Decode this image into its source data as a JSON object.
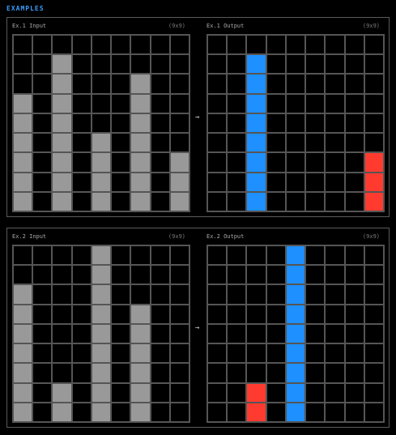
{
  "header": {
    "title": "EXAMPLES"
  },
  "arrow_glyph": "→",
  "palette": {
    "0": "#000000",
    "5": "#999999",
    "1": "#1e90ff",
    "2": "#ff3b30"
  },
  "examples": [
    {
      "input": {
        "label": "Ex.1 Input",
        "size": "(9x9)",
        "grid": [
          [
            0,
            0,
            0,
            0,
            0,
            0,
            0,
            0,
            0
          ],
          [
            0,
            0,
            5,
            0,
            0,
            0,
            0,
            0,
            0
          ],
          [
            0,
            0,
            5,
            0,
            0,
            0,
            5,
            0,
            0
          ],
          [
            5,
            0,
            5,
            0,
            0,
            0,
            5,
            0,
            0
          ],
          [
            5,
            0,
            5,
            0,
            0,
            0,
            5,
            0,
            0
          ],
          [
            5,
            0,
            5,
            0,
            5,
            0,
            5,
            0,
            0
          ],
          [
            5,
            0,
            5,
            0,
            5,
            0,
            5,
            0,
            5
          ],
          [
            5,
            0,
            5,
            0,
            5,
            0,
            5,
            0,
            5
          ],
          [
            5,
            0,
            5,
            0,
            5,
            0,
            5,
            0,
            5
          ]
        ]
      },
      "output": {
        "label": "Ex.1 Output",
        "size": "(9x9)",
        "grid": [
          [
            0,
            0,
            0,
            0,
            0,
            0,
            0,
            0,
            0
          ],
          [
            0,
            0,
            1,
            0,
            0,
            0,
            0,
            0,
            0
          ],
          [
            0,
            0,
            1,
            0,
            0,
            0,
            0,
            0,
            0
          ],
          [
            0,
            0,
            1,
            0,
            0,
            0,
            0,
            0,
            0
          ],
          [
            0,
            0,
            1,
            0,
            0,
            0,
            0,
            0,
            0
          ],
          [
            0,
            0,
            1,
            0,
            0,
            0,
            0,
            0,
            0
          ],
          [
            0,
            0,
            1,
            0,
            0,
            0,
            0,
            0,
            2
          ],
          [
            0,
            0,
            1,
            0,
            0,
            0,
            0,
            0,
            2
          ],
          [
            0,
            0,
            1,
            0,
            0,
            0,
            0,
            0,
            2
          ]
        ]
      }
    },
    {
      "input": {
        "label": "Ex.2 Input",
        "size": "(9x9)",
        "grid": [
          [
            0,
            0,
            0,
            0,
            5,
            0,
            0,
            0,
            0
          ],
          [
            0,
            0,
            0,
            0,
            5,
            0,
            0,
            0,
            0
          ],
          [
            5,
            0,
            0,
            0,
            5,
            0,
            0,
            0,
            0
          ],
          [
            5,
            0,
            0,
            0,
            5,
            0,
            5,
            0,
            0
          ],
          [
            5,
            0,
            0,
            0,
            5,
            0,
            5,
            0,
            0
          ],
          [
            5,
            0,
            0,
            0,
            5,
            0,
            5,
            0,
            0
          ],
          [
            5,
            0,
            0,
            0,
            5,
            0,
            5,
            0,
            0
          ],
          [
            5,
            0,
            5,
            0,
            5,
            0,
            5,
            0,
            0
          ],
          [
            5,
            0,
            5,
            0,
            5,
            0,
            5,
            0,
            0
          ]
        ]
      },
      "output": {
        "label": "Ex.2 Output",
        "size": "(9x9)",
        "grid": [
          [
            0,
            0,
            0,
            0,
            1,
            0,
            0,
            0,
            0
          ],
          [
            0,
            0,
            0,
            0,
            1,
            0,
            0,
            0,
            0
          ],
          [
            0,
            0,
            0,
            0,
            1,
            0,
            0,
            0,
            0
          ],
          [
            0,
            0,
            0,
            0,
            1,
            0,
            0,
            0,
            0
          ],
          [
            0,
            0,
            0,
            0,
            1,
            0,
            0,
            0,
            0
          ],
          [
            0,
            0,
            0,
            0,
            1,
            0,
            0,
            0,
            0
          ],
          [
            0,
            0,
            0,
            0,
            1,
            0,
            0,
            0,
            0
          ],
          [
            0,
            0,
            2,
            0,
            1,
            0,
            0,
            0,
            0
          ],
          [
            0,
            0,
            2,
            0,
            1,
            0,
            0,
            0,
            0
          ]
        ]
      }
    }
  ]
}
